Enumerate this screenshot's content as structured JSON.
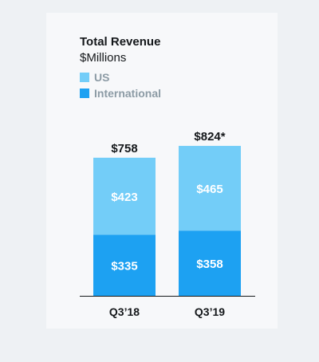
{
  "colors": {
    "us": "#73cdf8",
    "international": "#1da1f2",
    "text_dark": "#14171a",
    "legend_text": "#8c9ba5",
    "axis": "#14171a",
    "value_text": "#ffffff"
  },
  "chart_data": {
    "type": "bar",
    "stacked": true,
    "title": "Total Revenue",
    "subtitle": "$Millions",
    "categories": [
      "Q3’18",
      "Q3’19"
    ],
    "series": [
      {
        "name": "International",
        "values": [
          335,
          358
        ],
        "labels": [
          "$335",
          "$358"
        ]
      },
      {
        "name": "US",
        "values": [
          423,
          465
        ],
        "labels": [
          "$423",
          "$465"
        ]
      }
    ],
    "totals": [
      758,
      824
    ],
    "total_labels": [
      "$758",
      "$824*"
    ],
    "xlabel": "",
    "ylabel": "",
    "grid": false,
    "legend": "top-left"
  }
}
